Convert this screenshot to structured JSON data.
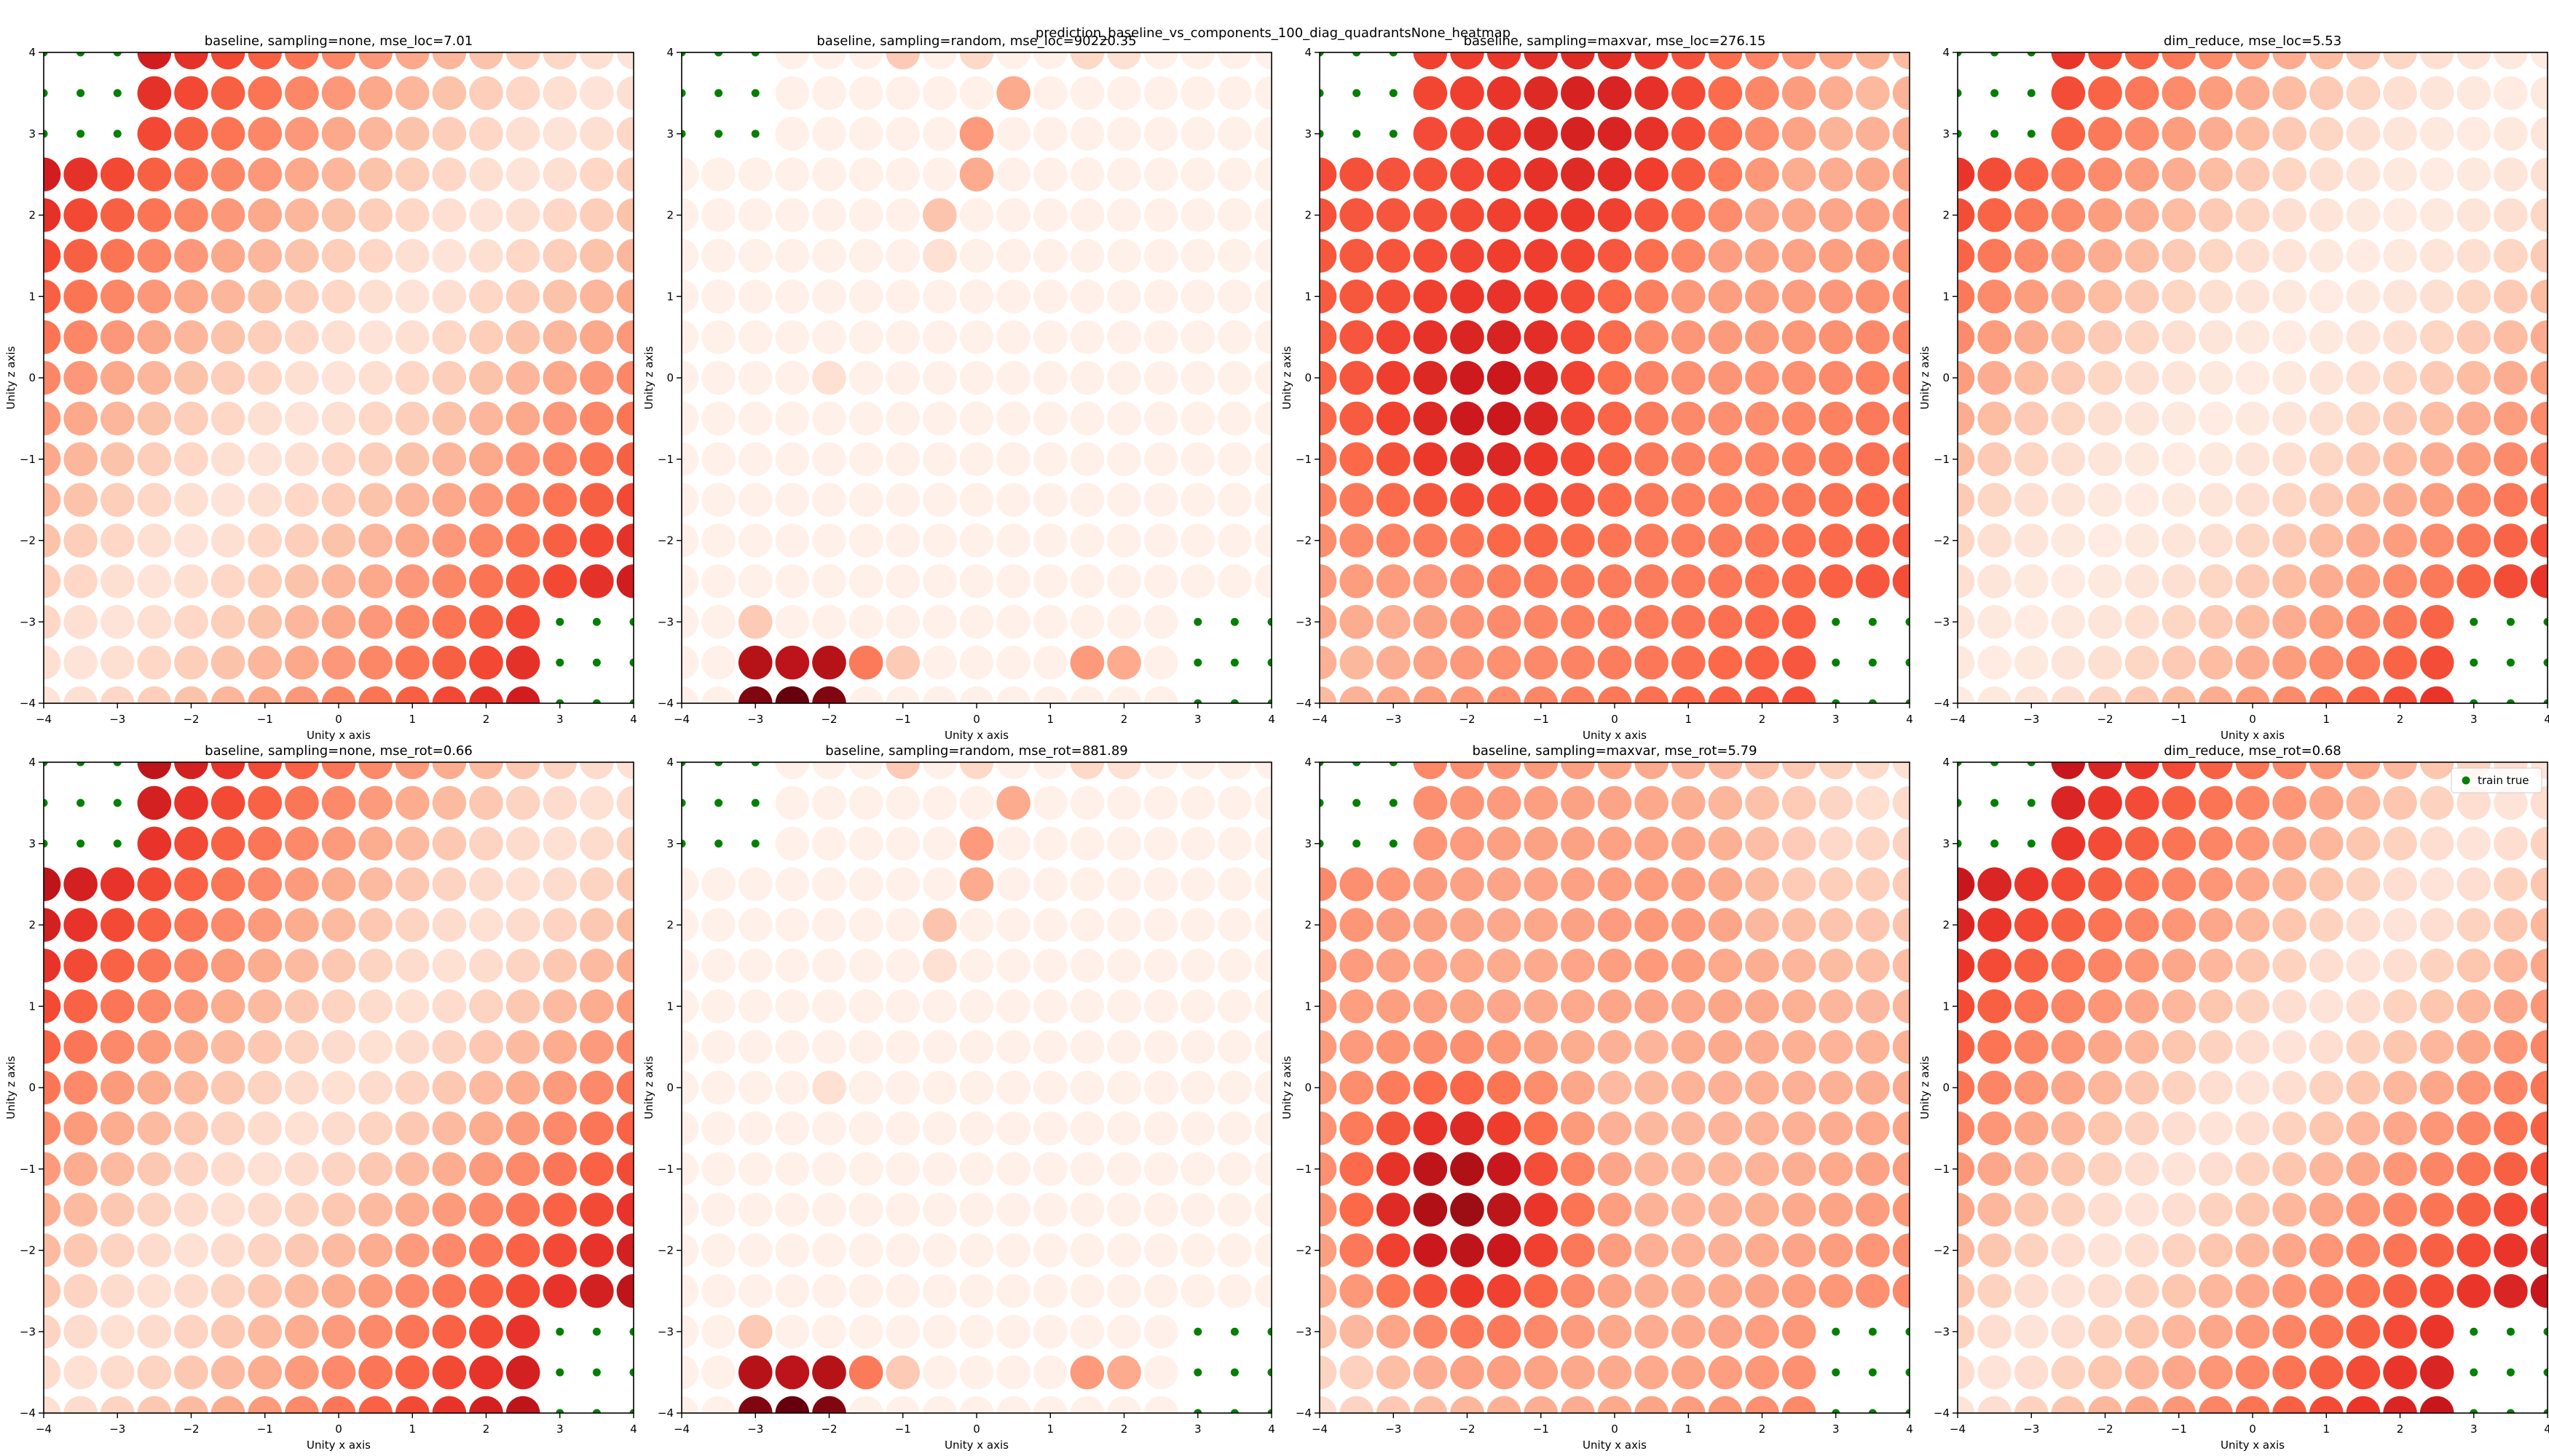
{
  "figure_title": "prediction_baseline_vs_components_100_diag_quadrantsNone_heatmap",
  "legend_label": "train true",
  "colors": {
    "cmap_low": "#fff5f0",
    "cmap_stops": [
      "#fff5f0",
      "#fee0d2",
      "#fcbba1",
      "#fc9272",
      "#fb6a4a",
      "#ef3b2c",
      "#cb181d",
      "#a50f15",
      "#67000d"
    ],
    "train_true": "#008000",
    "axes_frame": "#000000"
  },
  "chart_data": [
    {
      "type": "scatter",
      "title": "baseline, sampling=none, mse_loc=7.01",
      "xlabel": "Unity x axis",
      "ylabel": "Unity z axis",
      "xlim": [
        -4,
        4
      ],
      "ylim": [
        -4,
        4
      ],
      "xticks": [
        "−4",
        "−3",
        "−2",
        "−1",
        "0",
        "1",
        "2",
        "3",
        "4"
      ],
      "yticks": [
        "−4",
        "−3",
        "−2",
        "−1",
        "0",
        "1",
        "2",
        "3",
        "4"
      ],
      "grid": false,
      "legend": false,
      "pattern": "baseline_none",
      "series": [
        {
          "name": "train true",
          "points": "grid spacing 0.5 over x∈[-4,-3], z∈[3,4] and x∈[3,4], z∈[-4,-3]"
        }
      ]
    },
    {
      "type": "scatter",
      "title": "baseline, sampling=random, mse_loc=90220.35",
      "xlabel": "Unity x axis",
      "ylabel": "Unity z axis",
      "xlim": [
        -4,
        4
      ],
      "ylim": [
        -4,
        4
      ],
      "xticks": [
        "−4",
        "−3",
        "−2",
        "−1",
        "0",
        "1",
        "2",
        "3",
        "4"
      ],
      "yticks": [
        "−4",
        "−3",
        "−2",
        "−1",
        "0",
        "1",
        "2",
        "3",
        "4"
      ],
      "grid": false,
      "legend": false,
      "pattern": "random"
    },
    {
      "type": "scatter",
      "title": "baseline, sampling=maxvar, mse_loc=276.15",
      "xlabel": "Unity x axis",
      "ylabel": "Unity z axis",
      "xlim": [
        -4,
        4
      ],
      "ylim": [
        -4,
        4
      ],
      "xticks": [
        "−4",
        "−3",
        "−2",
        "−1",
        "0",
        "1",
        "2",
        "3",
        "4"
      ],
      "yticks": [
        "−4",
        "−3",
        "−2",
        "−1",
        "0",
        "1",
        "2",
        "3",
        "4"
      ],
      "grid": false,
      "legend": false,
      "pattern": "maxvar_loc"
    },
    {
      "type": "scatter",
      "title": "dim_reduce, mse_loc=5.53",
      "xlabel": "Unity x axis",
      "ylabel": "Unity z axis",
      "xlim": [
        -4,
        4
      ],
      "ylim": [
        -4,
        4
      ],
      "xticks": [
        "−4",
        "−3",
        "−2",
        "−1",
        "0",
        "1",
        "2",
        "3",
        "4"
      ],
      "yticks": [
        "−4",
        "−3",
        "−2",
        "−1",
        "0",
        "1",
        "2",
        "3",
        "4"
      ],
      "grid": false,
      "legend": false,
      "pattern": "dimred_loc"
    },
    {
      "type": "scatter",
      "title": "baseline, sampling=none, mse_rot=0.66",
      "xlabel": "Unity x axis",
      "ylabel": "Unity z axis",
      "xlim": [
        -4,
        4
      ],
      "ylim": [
        -4,
        4
      ],
      "xticks": [
        "−4",
        "−3",
        "−2",
        "−1",
        "0",
        "1",
        "2",
        "3",
        "4"
      ],
      "yticks": [
        "−4",
        "−3",
        "−2",
        "−1",
        "0",
        "1",
        "2",
        "3",
        "4"
      ],
      "grid": false,
      "legend": false,
      "pattern": "baseline_rot"
    },
    {
      "type": "scatter",
      "title": "baseline, sampling=random, mse_rot=881.89",
      "xlabel": "Unity x axis",
      "ylabel": "Unity z axis",
      "xlim": [
        -4,
        4
      ],
      "ylim": [
        -4,
        4
      ],
      "xticks": [
        "−4",
        "−3",
        "−2",
        "−1",
        "0",
        "1",
        "2",
        "3",
        "4"
      ],
      "yticks": [
        "−4",
        "−3",
        "−2",
        "−1",
        "0",
        "1",
        "2",
        "3",
        "4"
      ],
      "grid": false,
      "legend": false,
      "pattern": "random"
    },
    {
      "type": "scatter",
      "title": "baseline, sampling=maxvar, mse_rot=5.79",
      "xlabel": "Unity x axis",
      "ylabel": "Unity z axis",
      "xlim": [
        -4,
        4
      ],
      "ylim": [
        -4,
        4
      ],
      "xticks": [
        "−4",
        "−3",
        "−2",
        "−1",
        "0",
        "1",
        "2",
        "3",
        "4"
      ],
      "yticks": [
        "−4",
        "−3",
        "−2",
        "−1",
        "0",
        "1",
        "2",
        "3",
        "4"
      ],
      "grid": false,
      "legend": false,
      "pattern": "maxvar_rot"
    },
    {
      "type": "scatter",
      "title": "dim_reduce, mse_rot=0.68",
      "xlabel": "Unity x axis",
      "ylabel": "Unity z axis",
      "xlim": [
        -4,
        4
      ],
      "ylim": [
        -4,
        4
      ],
      "xticks": [
        "−4",
        "−3",
        "−2",
        "−1",
        "0",
        "1",
        "2",
        "3",
        "4"
      ],
      "yticks": [
        "−4",
        "−3",
        "−2",
        "−1",
        "0",
        "1",
        "2",
        "3",
        "4"
      ],
      "grid": false,
      "legend": "upper right",
      "pattern": "dimred_rot"
    }
  ]
}
